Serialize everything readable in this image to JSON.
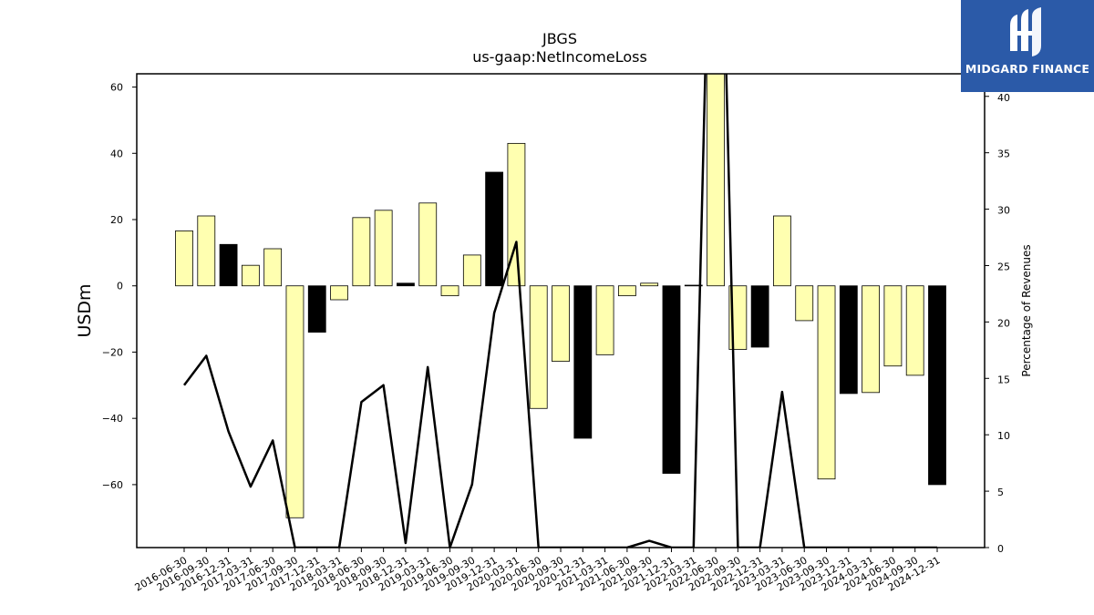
{
  "brand": {
    "name": "MIDGARD FINANCE",
    "background": "#2b5aa8",
    "icon": "midgard-logo-icon"
  },
  "chart_data": {
    "type": "bar",
    "title": "JBGS",
    "subtitle": "us-gaap:NetIncomeLoss",
    "ylabel": "USDm",
    "y2label": "Percentage of Revenues",
    "ylim": [
      -79,
      64
    ],
    "y2lim": [
      0,
      42
    ],
    "yticks": [
      -60,
      -40,
      -20,
      0,
      20,
      40,
      60
    ],
    "y2ticks": [
      0,
      5,
      10,
      15,
      20,
      25,
      30,
      35,
      40
    ],
    "bar_colors": {
      "normal": "#ffffb0",
      "q4": "#000000",
      "edge": "#000000"
    },
    "line_color": "#000000",
    "categories": [
      "2016-06-30",
      "2016-09-30",
      "2016-12-31",
      "2017-03-31",
      "2017-06-30",
      "2017-09-30",
      "2017-12-31",
      "2018-03-31",
      "2018-06-30",
      "2018-09-30",
      "2018-12-31",
      "2019-03-31",
      "2019-06-30",
      "2019-09-30",
      "2019-12-31",
      "2020-03-31",
      "2020-06-30",
      "2020-09-30",
      "2020-12-31",
      "2021-03-31",
      "2021-06-30",
      "2021-09-30",
      "2021-12-31",
      "2022-03-31",
      "2022-06-30",
      "2022-09-30",
      "2022-12-31",
      "2023-03-31",
      "2023-06-30",
      "2023-09-30",
      "2023-12-31",
      "2024-03-31",
      "2024-06-30",
      "2024-09-30",
      "2024-12-31"
    ],
    "series": [
      {
        "kind": "bar",
        "axis": "left",
        "values": [
          16.6,
          21.1,
          12.5,
          6.2,
          11.2,
          -70.0,
          -14.0,
          -4.2,
          20.6,
          22.8,
          0.8,
          25.0,
          -3.0,
          9.3,
          34.3,
          43.0,
          -37.0,
          -22.8,
          -46.0,
          -20.8,
          -3.0,
          0.8,
          -56.6,
          0.2,
          70.0,
          -19.2,
          -18.5,
          21.1,
          -10.5,
          -58.3,
          -32.5,
          -32.2,
          -24.2,
          -27.0,
          -60.0
        ]
      },
      {
        "kind": "line",
        "axis": "right",
        "values": [
          14.4,
          17.0,
          10.3,
          5.4,
          9.5,
          0.0,
          0.0,
          0.0,
          12.9,
          14.4,
          0.4,
          16.0,
          0.0,
          5.6,
          20.8,
          27.1,
          0.0,
          0.0,
          0.0,
          0.0,
          0.0,
          0.6,
          0.0,
          0.0,
          80.0,
          0.0,
          0.0,
          13.8,
          0.0,
          0.0,
          0.0,
          0.0,
          0.0,
          0.0,
          0.0
        ]
      }
    ],
    "q4_indices": [
      2,
      6,
      10,
      14,
      18,
      22,
      26,
      30,
      34
    ]
  }
}
